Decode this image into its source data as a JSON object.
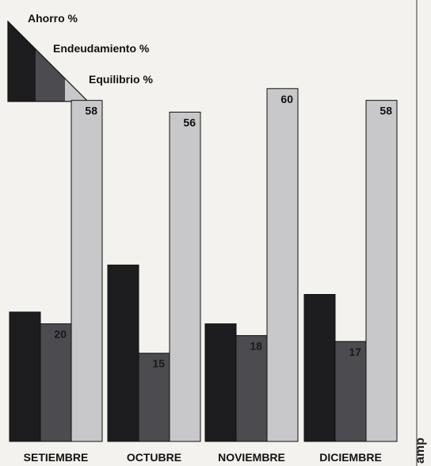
{
  "chart_data": {
    "type": "bar",
    "categories": [
      "SETIEMBRE",
      "OCTUBRE",
      "NOVIEMBRE",
      "DICIEMBRE"
    ],
    "series": [
      {
        "name": "Ahorro %",
        "values": [
          22,
          30,
          20,
          25
        ],
        "color": "#1d1d1f",
        "labeled": false
      },
      {
        "name": "Endeudamiento %",
        "values": [
          20,
          15,
          18,
          17
        ],
        "color": "#4c4b50",
        "labeled": true
      },
      {
        "name": "Equilibrio %",
        "values": [
          58,
          56,
          60,
          58
        ],
        "color": "#c8c7c9",
        "labeled": true
      }
    ],
    "ylim": [
      0,
      70
    ],
    "grid": false,
    "legend": "top-left",
    "xlabel": "",
    "ylabel": ""
  },
  "side_text": "amp"
}
